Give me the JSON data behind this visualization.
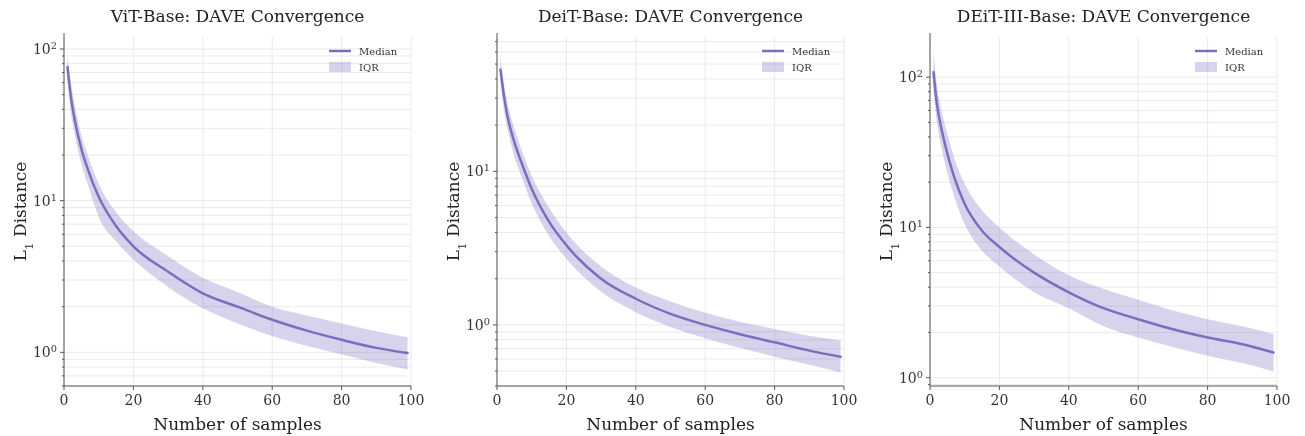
{
  "chart_data": [
    {
      "type": "line",
      "title": "ViT-Base: DAVE Convergence",
      "xlabel": "Number of samples",
      "ylabel": "L$_{1}$ Distance",
      "log": "y",
      "grid": true,
      "legend": "top right",
      "xlim": [
        0,
        100
      ],
      "xticks": [
        0,
        20,
        40,
        60,
        80,
        100
      ],
      "ylim": [
        0.6,
        120
      ],
      "yticks": [
        {
          "value": 0.6,
          "label": null
        },
        {
          "value": 0.7,
          "label": null
        },
        {
          "value": 0.8,
          "label": null
        },
        {
          "value": 0.9,
          "label": null
        },
        {
          "value": 1,
          "label": "10$^{0}$"
        },
        {
          "value": 2,
          "label": null
        },
        {
          "value": 3,
          "label": null
        },
        {
          "value": 4,
          "label": null
        },
        {
          "value": 5,
          "label": null
        },
        {
          "value": 6,
          "label": null
        },
        {
          "value": 7,
          "label": null
        },
        {
          "value": 8,
          "label": null
        },
        {
          "value": 9,
          "label": null
        },
        {
          "value": 10,
          "label": "10$^{1}$"
        },
        {
          "value": 20,
          "label": null
        },
        {
          "value": 30,
          "label": null
        },
        {
          "value": 40,
          "label": null
        },
        {
          "value": 50,
          "label": null
        },
        {
          "value": 60,
          "label": null
        },
        {
          "value": 70,
          "label": null
        },
        {
          "value": 80,
          "label": null
        },
        {
          "value": 90,
          "label": null
        },
        {
          "value": 100,
          "label": "10$^{2}$"
        }
      ],
      "x": [
        1,
        2,
        3,
        5,
        7,
        10,
        15,
        20,
        30,
        40,
        50,
        60,
        70,
        80,
        90,
        99
      ],
      "annotations": [
        "IQR"
      ],
      "series": [
        {
          "name": "Median",
          "color": "#7d6dc0",
          "values": [
            76,
            48,
            35,
            22,
            15.8,
            10.6,
            6.8,
            5.0,
            3.4,
            2.45,
            2.0,
            1.64,
            1.39,
            1.21,
            1.07,
            0.99
          ],
          "lower": [
            62,
            38,
            28,
            17.5,
            12.5,
            7.8,
            5.4,
            4.1,
            2.7,
            1.95,
            1.55,
            1.28,
            1.1,
            0.97,
            0.85,
            0.77
          ],
          "upper": [
            92,
            60,
            44,
            27,
            19.5,
            12.9,
            8.4,
            6.3,
            4.3,
            3.1,
            2.5,
            2.0,
            1.75,
            1.55,
            1.38,
            1.26
          ]
        }
      ]
    },
    {
      "type": "line",
      "title": "DeiT-Base: DAVE Convergence",
      "xlabel": "Number of samples",
      "ylabel": "L$_{1}$ Distance",
      "log": "y",
      "grid": true,
      "legend": "top right",
      "xlim": [
        0,
        100
      ],
      "xticks": [
        0,
        20,
        40,
        60,
        80,
        100
      ],
      "ylim": [
        0.4,
        75
      ],
      "yticks": [
        {
          "value": 0.4,
          "label": null
        },
        {
          "value": 0.5,
          "label": null
        },
        {
          "value": 0.6,
          "label": null
        },
        {
          "value": 0.7,
          "label": null
        },
        {
          "value": 0.8,
          "label": null
        },
        {
          "value": 0.9,
          "label": null
        },
        {
          "value": 1,
          "label": "10$^{0}$"
        },
        {
          "value": 2,
          "label": null
        },
        {
          "value": 3,
          "label": null
        },
        {
          "value": 4,
          "label": null
        },
        {
          "value": 5,
          "label": null
        },
        {
          "value": 6,
          "label": null
        },
        {
          "value": 7,
          "label": null
        },
        {
          "value": 8,
          "label": null
        },
        {
          "value": 9,
          "label": null
        },
        {
          "value": 10,
          "label": "10$^{1}$"
        },
        {
          "value": 20,
          "label": null
        },
        {
          "value": 30,
          "label": null
        },
        {
          "value": 40,
          "label": null
        },
        {
          "value": 50,
          "label": null
        },
        {
          "value": 60,
          "label": null
        },
        {
          "value": 70,
          "label": null
        }
      ],
      "x": [
        1,
        2,
        3,
        5,
        7,
        10,
        15,
        20,
        30,
        40,
        50,
        60,
        70,
        80,
        90,
        99
      ],
      "annotations": [
        "IQR"
      ],
      "series": [
        {
          "name": "Median",
          "color": "#7d6dc0",
          "values": [
            46,
            31,
            23,
            15.5,
            11.5,
            7.7,
            4.7,
            3.3,
            2.0,
            1.48,
            1.18,
            1.0,
            0.87,
            0.77,
            0.68,
            0.62
          ],
          "lower": [
            38,
            25,
            19,
            12.5,
            9.3,
            6.2,
            3.8,
            2.7,
            1.65,
            1.21,
            0.97,
            0.82,
            0.71,
            0.62,
            0.55,
            0.49
          ],
          "upper": [
            56,
            37,
            28,
            19,
            14,
            9.4,
            5.8,
            4.0,
            2.4,
            1.75,
            1.42,
            1.2,
            1.05,
            0.94,
            0.85,
            0.79
          ]
        }
      ]
    },
    {
      "type": "line",
      "title": "DEiT-III-Base: DAVE Convergence",
      "xlabel": "Number of samples",
      "ylabel": "L$_{1}$ Distance",
      "log": "y",
      "grid": true,
      "legend": "top right",
      "xlim": [
        0,
        100
      ],
      "xticks": [
        0,
        20,
        40,
        60,
        80,
        100
      ],
      "ylim": [
        0.88,
        185
      ],
      "yticks": [
        {
          "value": 0.9,
          "label": null
        },
        {
          "value": 1,
          "label": "10$^{0}$"
        },
        {
          "value": 2,
          "label": null
        },
        {
          "value": 3,
          "label": null
        },
        {
          "value": 4,
          "label": null
        },
        {
          "value": 5,
          "label": null
        },
        {
          "value": 6,
          "label": null
        },
        {
          "value": 7,
          "label": null
        },
        {
          "value": 8,
          "label": null
        },
        {
          "value": 9,
          "label": null
        },
        {
          "value": 10,
          "label": "10$^{1}$"
        },
        {
          "value": 20,
          "label": null
        },
        {
          "value": 30,
          "label": null
        },
        {
          "value": 40,
          "label": null
        },
        {
          "value": 50,
          "label": null
        },
        {
          "value": 60,
          "label": null
        },
        {
          "value": 70,
          "label": null
        },
        {
          "value": 80,
          "label": null
        },
        {
          "value": 90,
          "label": null
        },
        {
          "value": 100,
          "label": "10$^{2}$"
        }
      ],
      "x": [
        1,
        2,
        3,
        5,
        7,
        10,
        15,
        20,
        30,
        40,
        50,
        60,
        70,
        80,
        90,
        99
      ],
      "annotations": [
        "IQR"
      ],
      "series": [
        {
          "name": "Median",
          "color": "#7d6dc0",
          "values": [
            108,
            66,
            49,
            31,
            21.5,
            14.3,
            9.5,
            7.4,
            5.0,
            3.7,
            2.9,
            2.45,
            2.1,
            1.85,
            1.67,
            1.47
          ],
          "lower": [
            82,
            50,
            37,
            23,
            16,
            10.5,
            7,
            5.5,
            3.7,
            2.9,
            2.2,
            1.85,
            1.6,
            1.4,
            1.25,
            1.1
          ],
          "upper": [
            147,
            88,
            65,
            42,
            29,
            19.5,
            13,
            10,
            6.6,
            4.8,
            3.9,
            3.3,
            2.8,
            2.45,
            2.2,
            1.95
          ]
        }
      ]
    }
  ]
}
